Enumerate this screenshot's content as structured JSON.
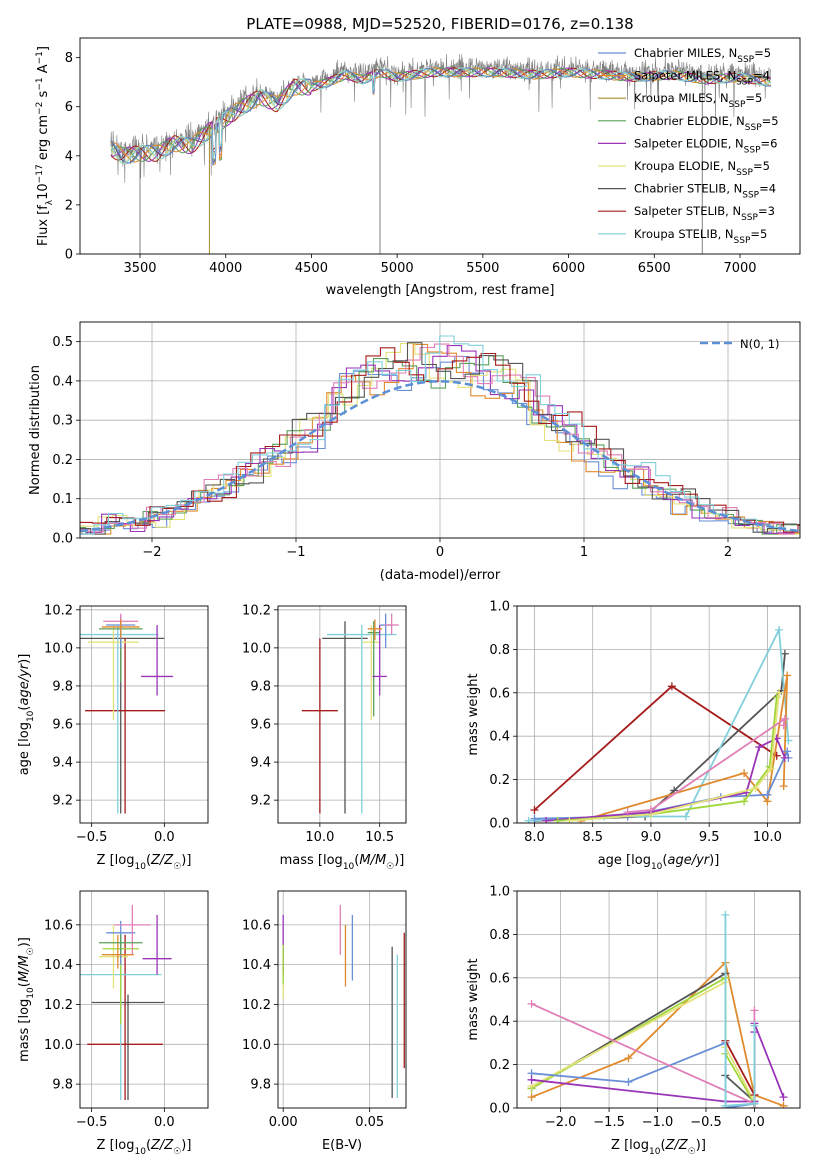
{
  "title": "PLATE=0988, MJD=52520, FIBERID=0176, z=0.138",
  "colors": {
    "chabrier_miles": "#6a8fd6",
    "salpeter_miles": "#e08a2e",
    "kroupa_miles": "#a88b2a",
    "chabrier_elodie": "#5aa05a",
    "salpeter_elodie": "#9a35b8",
    "kroupa_elodie": "#e4e27a",
    "chabrier_stelib": "#555555",
    "salpeter_stelib": "#a61b1b",
    "kroupa_stelib": "#80d0dc",
    "pink": "#e07fb8",
    "lime": "#9fd63a",
    "gauss": "#5b8fd6",
    "spectrum": "#808080"
  },
  "chart_data": [
    {
      "type": "line",
      "name": "spectrum",
      "xlabel": "wavelength [Angstrom, rest frame]",
      "ylabel": "Flux [f_λ 10^-17 erg cm^-2 s^-1 A^-1]",
      "xlim": [
        3150,
        7350
      ],
      "ylim": [
        0,
        8.8
      ],
      "xticks": [
        "3500",
        "4000",
        "4500",
        "5000",
        "5500",
        "6000",
        "6500",
        "7000"
      ],
      "yticks": [
        "0",
        "2",
        "4",
        "6",
        "8"
      ],
      "legend_placement": "right",
      "legend": [
        {
          "label": "Chabrier MILES, N_SSP=5",
          "color_key": "chabrier_miles"
        },
        {
          "label": "Salpeter MILES, N_SSP=4",
          "color_key": "salpeter_miles"
        },
        {
          "label": "Kroupa MILES, N_SSP=5",
          "color_key": "kroupa_miles"
        },
        {
          "label": "Chabrier ELODIE, N_SSP=5",
          "color_key": "chabrier_elodie"
        },
        {
          "label": "Salpeter ELODIE, N_SSP=6",
          "color_key": "salpeter_elodie"
        },
        {
          "label": "Kroupa ELODIE, N_SSP=5",
          "color_key": "kroupa_elodie"
        },
        {
          "label": "Chabrier STELIB, N_SSP=4",
          "color_key": "chabrier_stelib"
        },
        {
          "label": "Salpeter STELIB, N_SSP=3",
          "color_key": "salpeter_stelib"
        },
        {
          "label": "Kroupa STELIB, N_SSP=5",
          "color_key": "kroupa_stelib"
        }
      ],
      "continuum": {
        "x": [
          3330,
          3400,
          3500,
          3600,
          3700,
          3800,
          3900,
          4000,
          4100,
          4200,
          4300,
          4400,
          4500,
          4600,
          4700,
          4800,
          4900,
          5000,
          5200,
          5400,
          5600,
          5800,
          6000,
          6200,
          6400,
          6600,
          6800,
          7000,
          7180
        ],
        "y": [
          4.5,
          4.2,
          4.3,
          4.3,
          4.7,
          4.6,
          5.2,
          5.7,
          6.2,
          6.6,
          6.3,
          7.0,
          7.0,
          7.2,
          7.5,
          7.3,
          7.6,
          7.4,
          7.6,
          7.6,
          7.6,
          7.5,
          7.6,
          7.5,
          7.4,
          7.5,
          7.3,
          7.4,
          7.2
        ]
      },
      "absorption_spikes_x": [
        3500,
        3905,
        4900,
        6780
      ]
    },
    {
      "type": "histogram",
      "name": "residuals",
      "xlabel": "(data-model)/error",
      "ylabel": "Normed distribution",
      "xlim": [
        -2.5,
        2.5
      ],
      "ylim": [
        0,
        0.55
      ],
      "xticks": [
        "−2",
        "−1",
        "0",
        "1",
        "2"
      ],
      "yticks": [
        "0.0",
        "0.1",
        "0.2",
        "0.3",
        "0.4",
        "0.5"
      ],
      "bin_width": 0.1,
      "gaussian_label": "N(0, 1)",
      "legend_placement": "top-right"
    },
    {
      "type": "scatter",
      "name": "age_vs_Z",
      "xlabel": "Z [log10(Z/Z☉)]",
      "ylabel": "age  [log10(age/yr)]",
      "xlim": [
        -0.58,
        0.3
      ],
      "ylim": [
        9.08,
        10.22
      ],
      "xticks": [
        "−0.5",
        "0.0"
      ],
      "yticks": [
        "9.2",
        "9.4",
        "9.6",
        "9.8",
        "10.0",
        "10.2"
      ],
      "points": [
        {
          "x": -0.3,
          "y": 10.05,
          "xerr": 0.6,
          "ylo": 9.13,
          "yhi": 10.14,
          "c": "chabrier_stelib"
        },
        {
          "x": -0.27,
          "y": 9.67,
          "xerr": 0.55,
          "ylo": 9.13,
          "yhi": 10.05,
          "c": "salpeter_stelib"
        },
        {
          "x": -0.32,
          "y": 10.07,
          "xerr": 0.56,
          "ylo": 9.13,
          "yhi": 10.12,
          "c": "kroupa_stelib"
        },
        {
          "x": -0.35,
          "y": 10.03,
          "xerr": 0.35,
          "ylo": 9.62,
          "yhi": 10.12,
          "c": "kroupa_elodie"
        },
        {
          "x": -0.3,
          "y": 10.1,
          "xerr": 0.3,
          "ylo": 9.82,
          "yhi": 10.16,
          "c": "chabrier_elodie"
        },
        {
          "x": -0.05,
          "y": 9.85,
          "xerr": 0.22,
          "ylo": 9.75,
          "yhi": 10.12,
          "c": "salpeter_elodie"
        },
        {
          "x": -0.3,
          "y": 10.12,
          "xerr": 0.2,
          "ylo": 10.0,
          "yhi": 10.17,
          "c": "chabrier_miles"
        },
        {
          "x": -0.3,
          "y": 10.14,
          "xerr": 0.24,
          "ylo": 10.1,
          "yhi": 10.18,
          "c": "pink"
        },
        {
          "x": -0.3,
          "y": 10.11,
          "xerr": 0.26,
          "ylo": 10.05,
          "yhi": 10.15,
          "c": "salpeter_miles"
        }
      ]
    },
    {
      "type": "scatter",
      "name": "age_vs_mass",
      "xlabel": "mass [log10(M/M☉)]",
      "ylabel": "",
      "xlim": [
        9.65,
        10.72
      ],
      "ylim": [
        9.08,
        10.22
      ],
      "xticks": [
        "10.0",
        "10.5"
      ],
      "yticks": [
        "9.2",
        "9.4",
        "9.6",
        "9.8",
        "10.0",
        "10.2"
      ],
      "points": [
        {
          "x": 10.21,
          "y": 10.05,
          "xerr": 0.38,
          "ylo": 9.13,
          "yhi": 10.14,
          "c": "chabrier_stelib"
        },
        {
          "x": 10.0,
          "y": 9.67,
          "xerr": 0.3,
          "ylo": 9.13,
          "yhi": 10.05,
          "c": "salpeter_stelib"
        },
        {
          "x": 10.35,
          "y": 10.07,
          "xerr": 0.58,
          "ylo": 9.13,
          "yhi": 10.12,
          "c": "kroupa_stelib"
        },
        {
          "x": 10.43,
          "y": 10.03,
          "xerr": 0.15,
          "ylo": 9.62,
          "yhi": 10.12,
          "c": "kroupa_elodie"
        },
        {
          "x": 10.45,
          "y": 10.08,
          "xerr": 0.1,
          "ylo": 9.64,
          "yhi": 10.14,
          "c": "chabrier_elodie"
        },
        {
          "x": 10.5,
          "y": 9.85,
          "xerr": 0.12,
          "ylo": 9.75,
          "yhi": 10.12,
          "c": "salpeter_elodie"
        },
        {
          "x": 10.55,
          "y": 10.12,
          "xerr": 0.1,
          "ylo": 10.0,
          "yhi": 10.18,
          "c": "chabrier_miles"
        },
        {
          "x": 10.6,
          "y": 10.12,
          "xerr": 0.12,
          "ylo": 10.07,
          "yhi": 10.18,
          "c": "pink"
        },
        {
          "x": 10.46,
          "y": 10.1,
          "xerr": 0.12,
          "ylo": 10.04,
          "yhi": 10.15,
          "c": "salpeter_miles"
        }
      ]
    },
    {
      "type": "line",
      "name": "mass_weight_vs_age",
      "xlabel": "age  [log10(age/yr)]",
      "ylabel": "mass weight",
      "xlim": [
        7.85,
        10.28
      ],
      "ylim": [
        0,
        1.0
      ],
      "xticks": [
        "8.0",
        "8.5",
        "9.0",
        "9.5",
        "10.0"
      ],
      "yticks": [
        "0.0",
        "0.2",
        "0.4",
        "0.6",
        "0.8",
        "1.0"
      ],
      "series": [
        {
          "c": "salpeter_stelib",
          "x": [
            8.0,
            9.18,
            10.08
          ],
          "y": [
            0.06,
            0.63,
            0.31
          ]
        },
        {
          "c": "chabrier_stelib",
          "x": [
            8.0,
            8.95,
            9.2,
            10.12,
            10.15
          ],
          "y": [
            0.01,
            0.03,
            0.15,
            0.61,
            0.78
          ]
        },
        {
          "c": "kroupa_stelib",
          "x": [
            7.95,
            8.6,
            9.3,
            10.1,
            10.18
          ],
          "y": [
            0.01,
            0.03,
            0.03,
            0.89,
            0.38
          ]
        },
        {
          "c": "salpeter_miles",
          "x": [
            8.4,
            9.8,
            10.0,
            10.17,
            10.14
          ],
          "y": [
            0.01,
            0.23,
            0.1,
            0.68,
            0.17
          ]
        },
        {
          "c": "chabrier_miles",
          "x": [
            8.0,
            8.8,
            9.6,
            10.0,
            10.17,
            10.18
          ],
          "y": [
            0.02,
            0.03,
            0.12,
            0.13,
            0.33,
            0.3
          ]
        },
        {
          "c": "salpeter_elodie",
          "x": [
            8.1,
            9.0,
            9.82,
            9.93,
            10.08,
            10.15
          ],
          "y": [
            0.01,
            0.05,
            0.14,
            0.35,
            0.39,
            0.3
          ]
        },
        {
          "c": "lime",
          "x": [
            8.2,
            9.0,
            9.8,
            10.02,
            10.08
          ],
          "y": [
            0.01,
            0.04,
            0.1,
            0.26,
            0.58
          ]
        },
        {
          "c": "kroupa_elodie",
          "x": [
            8.3,
            9.0,
            9.9,
            10.03,
            10.1
          ],
          "y": [
            0.01,
            0.04,
            0.16,
            0.25,
            0.6
          ]
        },
        {
          "c": "pink",
          "x": [
            8.8,
            9.0,
            10.15,
            10.14
          ],
          "y": [
            0.05,
            0.06,
            0.48,
            0.45
          ]
        }
      ]
    },
    {
      "type": "scatter",
      "name": "mass_vs_Z",
      "xlabel": "Z [log10(Z/Z☉)]",
      "ylabel": "mass [log10(M/M☉)]",
      "xlim": [
        -0.58,
        0.3
      ],
      "ylim": [
        9.68,
        10.77
      ],
      "xticks": [
        "−0.5",
        "0.0"
      ],
      "yticks": [
        "9.8",
        "10.0",
        "10.2",
        "10.4",
        "10.6"
      ],
      "points": [
        {
          "x": -0.27,
          "y": 10.0,
          "xerr": 0.52,
          "ylo": 9.72,
          "yhi": 10.55,
          "c": "salpeter_stelib"
        },
        {
          "x": -0.25,
          "y": 10.21,
          "xerr": 0.5,
          "ylo": 9.72,
          "yhi": 10.25,
          "c": "chabrier_stelib"
        },
        {
          "x": -0.3,
          "y": 10.35,
          "xerr": 0.56,
          "ylo": 9.72,
          "yhi": 10.5,
          "c": "kroupa_stelib"
        },
        {
          "x": -0.35,
          "y": 10.44,
          "xerr": 0.2,
          "ylo": 10.28,
          "yhi": 10.6,
          "c": "kroupa_elodie"
        },
        {
          "x": -0.3,
          "y": 10.48,
          "xerr": 0.25,
          "ylo": 10.1,
          "yhi": 10.56,
          "c": "lime"
        },
        {
          "x": -0.05,
          "y": 10.43,
          "xerr": 0.2,
          "ylo": 10.35,
          "yhi": 10.65,
          "c": "salpeter_elodie"
        },
        {
          "x": -0.3,
          "y": 10.56,
          "xerr": 0.2,
          "ylo": 10.4,
          "yhi": 10.62,
          "c": "chabrier_miles"
        },
        {
          "x": -0.22,
          "y": 10.6,
          "xerr": 0.25,
          "ylo": 10.45,
          "yhi": 10.7,
          "c": "pink"
        },
        {
          "x": -0.32,
          "y": 10.45,
          "xerr": 0.22,
          "ylo": 10.38,
          "yhi": 10.55,
          "c": "salpeter_miles"
        },
        {
          "x": -0.3,
          "y": 10.51,
          "xerr": 0.3,
          "ylo": 10.45,
          "yhi": 10.55,
          "c": "chabrier_elodie"
        }
      ]
    },
    {
      "type": "scatter",
      "name": "mass_vs_ebv",
      "xlabel": "E(B-V)",
      "ylabel": "",
      "xlim": [
        -0.003,
        0.071
      ],
      "ylim": [
        9.68,
        10.77
      ],
      "xticks": [
        "0.00",
        "0.05"
      ],
      "yticks": [
        "9.8",
        "10.0",
        "10.2",
        "10.4",
        "10.6"
      ],
      "points": [
        {
          "x": 0.0,
          "ylo": 10.23,
          "yhi": 10.48,
          "c": "kroupa_elodie"
        },
        {
          "x": 0.0,
          "ylo": 10.35,
          "yhi": 10.65,
          "c": "salpeter_elodie"
        },
        {
          "x": 0.0,
          "ylo": 10.3,
          "yhi": 10.5,
          "c": "lime"
        },
        {
          "x": 0.033,
          "ylo": 10.45,
          "yhi": 10.7,
          "c": "pink"
        },
        {
          "x": 0.036,
          "ylo": 10.29,
          "yhi": 10.6,
          "c": "salpeter_miles"
        },
        {
          "x": 0.04,
          "ylo": 10.32,
          "yhi": 10.65,
          "c": "chabrier_miles"
        },
        {
          "x": 0.063,
          "ylo": 9.73,
          "yhi": 10.49,
          "c": "chabrier_stelib"
        },
        {
          "x": 0.066,
          "ylo": 9.73,
          "yhi": 10.45,
          "c": "kroupa_stelib"
        },
        {
          "x": 0.07,
          "ylo": 9.88,
          "yhi": 10.56,
          "c": "salpeter_stelib"
        }
      ]
    },
    {
      "type": "line",
      "name": "mass_weight_vs_Z",
      "xlabel": "Z [log10(Z/Z☉)]",
      "ylabel": "mass weight",
      "xlim": [
        -2.45,
        0.47
      ],
      "ylim": [
        0,
        1.0
      ],
      "xticks": [
        "−2.0",
        "−1.5",
        "−1.0",
        "−0.5",
        "0.0"
      ],
      "yticks": [
        "0.0",
        "0.2",
        "0.4",
        "0.6",
        "0.8",
        "1.0"
      ],
      "series": [
        {
          "c": "salpeter_miles",
          "x": [
            -2.3,
            -1.3,
            -0.3,
            0.0,
            0.3
          ],
          "y": [
            0.05,
            0.23,
            0.67,
            0.06,
            0.01
          ]
        },
        {
          "c": "chabrier_stelib",
          "x": [
            -2.3,
            -0.3,
            -0.3,
            0.0
          ],
          "y": [
            0.09,
            0.62,
            0.15,
            0.03
          ]
        },
        {
          "c": "lime",
          "x": [
            -2.3,
            -0.3,
            -0.3,
            0.0,
            0.0
          ],
          "y": [
            0.09,
            0.6,
            0.25,
            0.02,
            0.03
          ]
        },
        {
          "c": "kroupa_elodie",
          "x": [
            -2.3,
            -0.3,
            -0.3,
            0.0
          ],
          "y": [
            0.1,
            0.58,
            0.28,
            0.03
          ]
        },
        {
          "c": "chabrier_miles",
          "x": [
            -2.3,
            -1.3,
            -0.3,
            -0.3,
            0.0,
            0.0
          ],
          "y": [
            0.16,
            0.12,
            0.3,
            0.0,
            0.02,
            0.03
          ]
        },
        {
          "c": "salpeter_elodie",
          "x": [
            -2.3,
            -0.3,
            0.0,
            0.0,
            0.0,
            0.3
          ],
          "y": [
            0.13,
            0.03,
            0.03,
            0.35,
            0.39,
            0.05
          ]
        },
        {
          "c": "pink",
          "x": [
            -2.3,
            0.0,
            0.0
          ],
          "y": [
            0.48,
            0.02,
            0.45
          ]
        },
        {
          "c": "salpeter_stelib",
          "x": [
            -0.3,
            0.0,
            0.0
          ],
          "y": [
            0.31,
            0.06,
            0.0
          ]
        },
        {
          "c": "kroupa_stelib",
          "x": [
            -0.3,
            -0.3,
            0.0,
            0.0
          ],
          "y": [
            0.89,
            0.01,
            0.02,
            0.38
          ]
        }
      ]
    }
  ]
}
